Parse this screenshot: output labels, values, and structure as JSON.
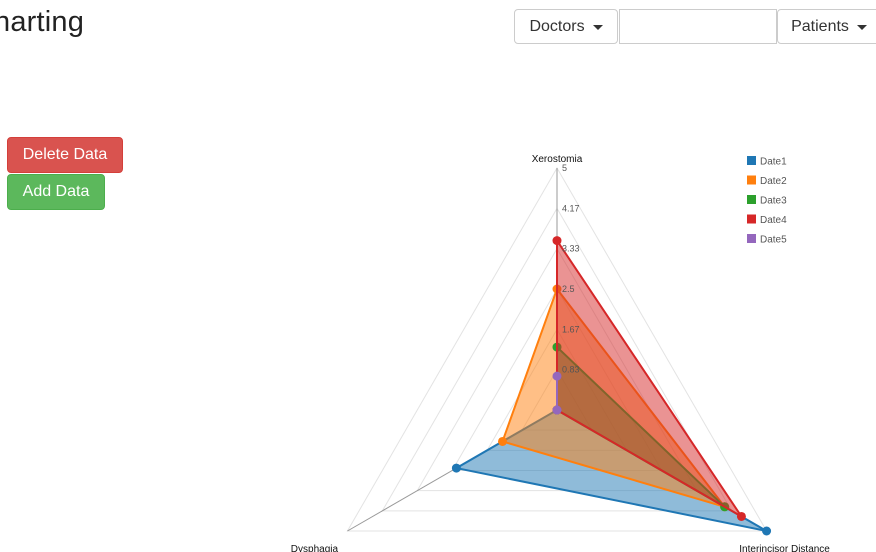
{
  "header": {
    "title": "harting",
    "doctors_label": "Doctors",
    "patients_label": "Patients",
    "search_value": ""
  },
  "actions": {
    "delete_label": "Delete Data",
    "add_label": "Add Data"
  },
  "chart_data": {
    "type": "radar",
    "axes": [
      "Xerostomia",
      "Interincisor Distance",
      "Dysphagia"
    ],
    "ticks": [
      "0.83",
      "1.67",
      "2.5",
      "3.33",
      "4.17",
      "5"
    ],
    "range": [
      0,
      5
    ],
    "legend_position": "top-right",
    "series": [
      {
        "name": "Date1",
        "color": "#1f77b4",
        "values": [
          0,
          5,
          2.4
        ]
      },
      {
        "name": "Date2",
        "color": "#ff7f0e",
        "values": [
          2.5,
          4.0,
          1.3
        ]
      },
      {
        "name": "Date3",
        "color": "#2ca02c",
        "values": [
          1.3,
          4.0,
          0
        ]
      },
      {
        "name": "Date4",
        "color": "#d62728",
        "values": [
          3.5,
          4.4,
          0
        ]
      },
      {
        "name": "Date5",
        "color": "#9467bd",
        "values": [
          0.7,
          0,
          0
        ]
      }
    ]
  }
}
